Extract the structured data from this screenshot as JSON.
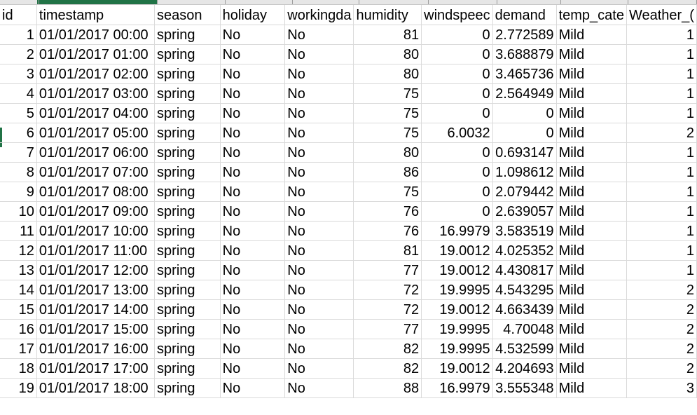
{
  "columns": [
    "id",
    "timestamp",
    "season",
    "holiday",
    "workingda",
    "humidity",
    "windspeec",
    "demand",
    "temp_cate",
    "Weather_("
  ],
  "rows": [
    [
      "1",
      "01/01/2017 00:00",
      "spring",
      "No",
      "No",
      "81",
      "0",
      "2.772589",
      "Mild",
      "1"
    ],
    [
      "2",
      "01/01/2017 01:00",
      "spring",
      "No",
      "No",
      "80",
      "0",
      "3.688879",
      "Mild",
      "1"
    ],
    [
      "3",
      "01/01/2017 02:00",
      "spring",
      "No",
      "No",
      "80",
      "0",
      "3.465736",
      "Mild",
      "1"
    ],
    [
      "4",
      "01/01/2017 03:00",
      "spring",
      "No",
      "No",
      "75",
      "0",
      "2.564949",
      "Mild",
      "1"
    ],
    [
      "5",
      "01/01/2017 04:00",
      "spring",
      "No",
      "No",
      "75",
      "0",
      "0",
      "Mild",
      "1"
    ],
    [
      "6",
      "01/01/2017 05:00",
      "spring",
      "No",
      "No",
      "75",
      "6.0032",
      "0",
      "Mild",
      "2"
    ],
    [
      "7",
      "01/01/2017 06:00",
      "spring",
      "No",
      "No",
      "80",
      "0",
      "0.693147",
      "Mild",
      "1"
    ],
    [
      "8",
      "01/01/2017 07:00",
      "spring",
      "No",
      "No",
      "86",
      "0",
      "1.098612",
      "Mild",
      "1"
    ],
    [
      "9",
      "01/01/2017 08:00",
      "spring",
      "No",
      "No",
      "75",
      "0",
      "2.079442",
      "Mild",
      "1"
    ],
    [
      "10",
      "01/01/2017 09:00",
      "spring",
      "No",
      "No",
      "76",
      "0",
      "2.639057",
      "Mild",
      "1"
    ],
    [
      "11",
      "01/01/2017 10:00",
      "spring",
      "No",
      "No",
      "76",
      "16.9979",
      "3.583519",
      "Mild",
      "1"
    ],
    [
      "12",
      "01/01/2017 11:00",
      "spring",
      "No",
      "No",
      "81",
      "19.0012",
      "4.025352",
      "Mild",
      "1"
    ],
    [
      "13",
      "01/01/2017 12:00",
      "spring",
      "No",
      "No",
      "77",
      "19.0012",
      "4.430817",
      "Mild",
      "1"
    ],
    [
      "14",
      "01/01/2017 13:00",
      "spring",
      "No",
      "No",
      "72",
      "19.9995",
      "4.543295",
      "Mild",
      "2"
    ],
    [
      "15",
      "01/01/2017 14:00",
      "spring",
      "No",
      "No",
      "72",
      "19.0012",
      "4.663439",
      "Mild",
      "2"
    ],
    [
      "16",
      "01/01/2017 15:00",
      "spring",
      "No",
      "No",
      "77",
      "19.9995",
      "4.70048",
      "Mild",
      "2"
    ],
    [
      "17",
      "01/01/2017 16:00",
      "spring",
      "No",
      "No",
      "82",
      "19.9995",
      "4.532599",
      "Mild",
      "2"
    ],
    [
      "18",
      "01/01/2017 17:00",
      "spring",
      "No",
      "No",
      "82",
      "19.0012",
      "4.204693",
      "Mild",
      "2"
    ],
    [
      "19",
      "01/01/2017 18:00",
      "spring",
      "No",
      "No",
      "88",
      "16.9979",
      "3.555348",
      "Mild",
      "3"
    ]
  ],
  "colors": {
    "accent": "#217346",
    "gridline": "#dadada"
  }
}
